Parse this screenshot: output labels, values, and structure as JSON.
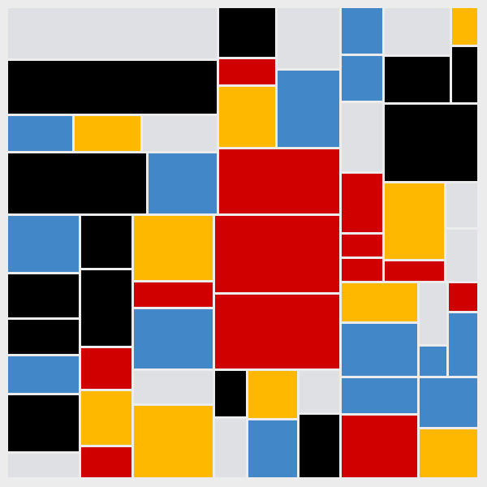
{
  "palette": {
    "K": "#000000",
    "R": "#d10000",
    "Y": "#ffb800",
    "B": "#4287c8",
    "G": "#dee0e4",
    "bg": "#ececec"
  },
  "blocks": [
    {
      "c": "G"
    },
    {
      "c": "K"
    },
    {
      "c": "G"
    },
    {
      "c": "B"
    },
    {
      "c": "G"
    },
    {
      "c": "Y"
    },
    {
      "c": "K"
    },
    {
      "c": "R"
    },
    {
      "c": "B"
    },
    {
      "c": "B"
    },
    {
      "c": "K"
    },
    {
      "c": "K"
    },
    {
      "c": "Y"
    },
    {
      "c": "B"
    },
    {
      "c": "Y"
    },
    {
      "c": "G"
    },
    {
      "c": "G"
    },
    {
      "c": "K"
    },
    {
      "c": "K"
    },
    {
      "c": "B"
    },
    {
      "c": "R"
    },
    {
      "c": "R"
    },
    {
      "c": "Y"
    },
    {
      "c": "G"
    },
    {
      "c": "B"
    },
    {
      "c": "K"
    },
    {
      "c": "Y"
    },
    {
      "c": "R"
    },
    {
      "c": "R"
    },
    {
      "c": "R"
    },
    {
      "c": "G"
    },
    {
      "c": "R"
    },
    {
      "c": "K"
    },
    {
      "c": "K"
    },
    {
      "c": "Y"
    },
    {
      "c": "R"
    },
    {
      "c": "R"
    },
    {
      "c": "Y"
    },
    {
      "c": "G"
    },
    {
      "c": "R"
    },
    {
      "c": "K"
    },
    {
      "c": "B"
    },
    {
      "c": "B"
    },
    {
      "c": "B"
    },
    {
      "c": "B"
    },
    {
      "c": "B"
    },
    {
      "c": "R"
    },
    {
      "c": "G"
    },
    {
      "c": "K"
    },
    {
      "c": "Y"
    },
    {
      "c": "G"
    },
    {
      "c": "B"
    },
    {
      "c": "B"
    },
    {
      "c": "K"
    },
    {
      "c": "Y"
    },
    {
      "c": "Y"
    },
    {
      "c": "G"
    },
    {
      "c": "B"
    },
    {
      "c": "K"
    },
    {
      "c": "R"
    },
    {
      "c": "Y"
    },
    {
      "c": "G"
    },
    {
      "c": "R"
    }
  ]
}
